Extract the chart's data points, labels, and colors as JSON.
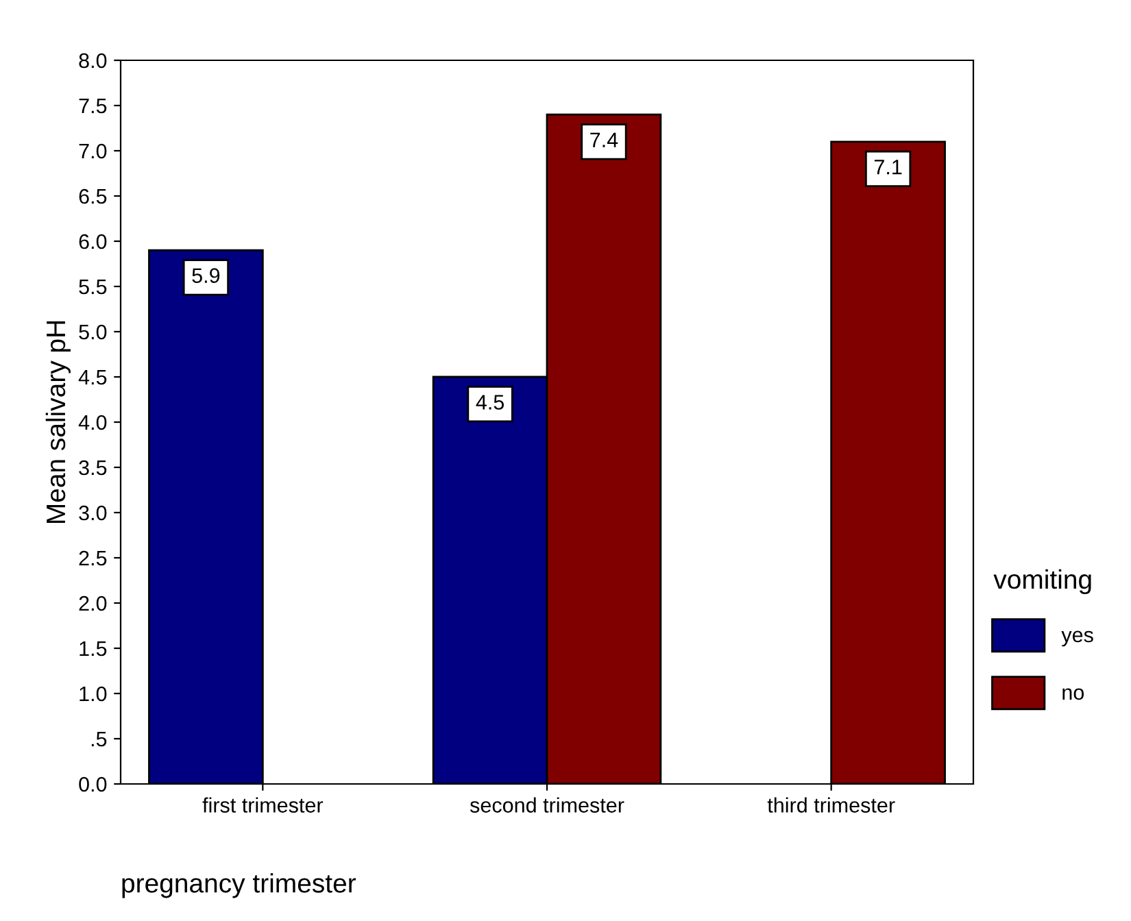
{
  "chart_data": {
    "type": "bar",
    "xlabel": "pregnancy trimester",
    "ylabel": "Mean salivary pH",
    "legend_title": "vomiting",
    "legend": "right",
    "grid": false,
    "data_labels": true,
    "categories": [
      "first trimester",
      "second trimester",
      "third trimester"
    ],
    "series": [
      {
        "name": "yes",
        "color": "#000080",
        "values": [
          5.9,
          4.5,
          null
        ]
      },
      {
        "name": "no",
        "color": "#800000",
        "values": [
          null,
          7.4,
          7.1
        ]
      }
    ],
    "ylim": [
      0,
      8
    ],
    "yticks": [
      {
        "value": 0,
        "label": "0.0"
      },
      {
        "value": 0.5,
        "label": ".5"
      },
      {
        "value": 1,
        "label": "1.0"
      },
      1.5,
      {
        "value": 2,
        "label": "2.0"
      },
      2.5,
      {
        "value": 3,
        "label": "3.0"
      },
      3.5,
      {
        "value": 4,
        "label": "4.0"
      },
      4.5,
      {
        "value": 5,
        "label": "5.0"
      },
      5.5,
      {
        "value": 6,
        "label": "6.0"
      },
      6.5,
      {
        "value": 7,
        "label": "7.0"
      },
      7.5,
      {
        "value": 8,
        "label": "8.0"
      }
    ]
  }
}
